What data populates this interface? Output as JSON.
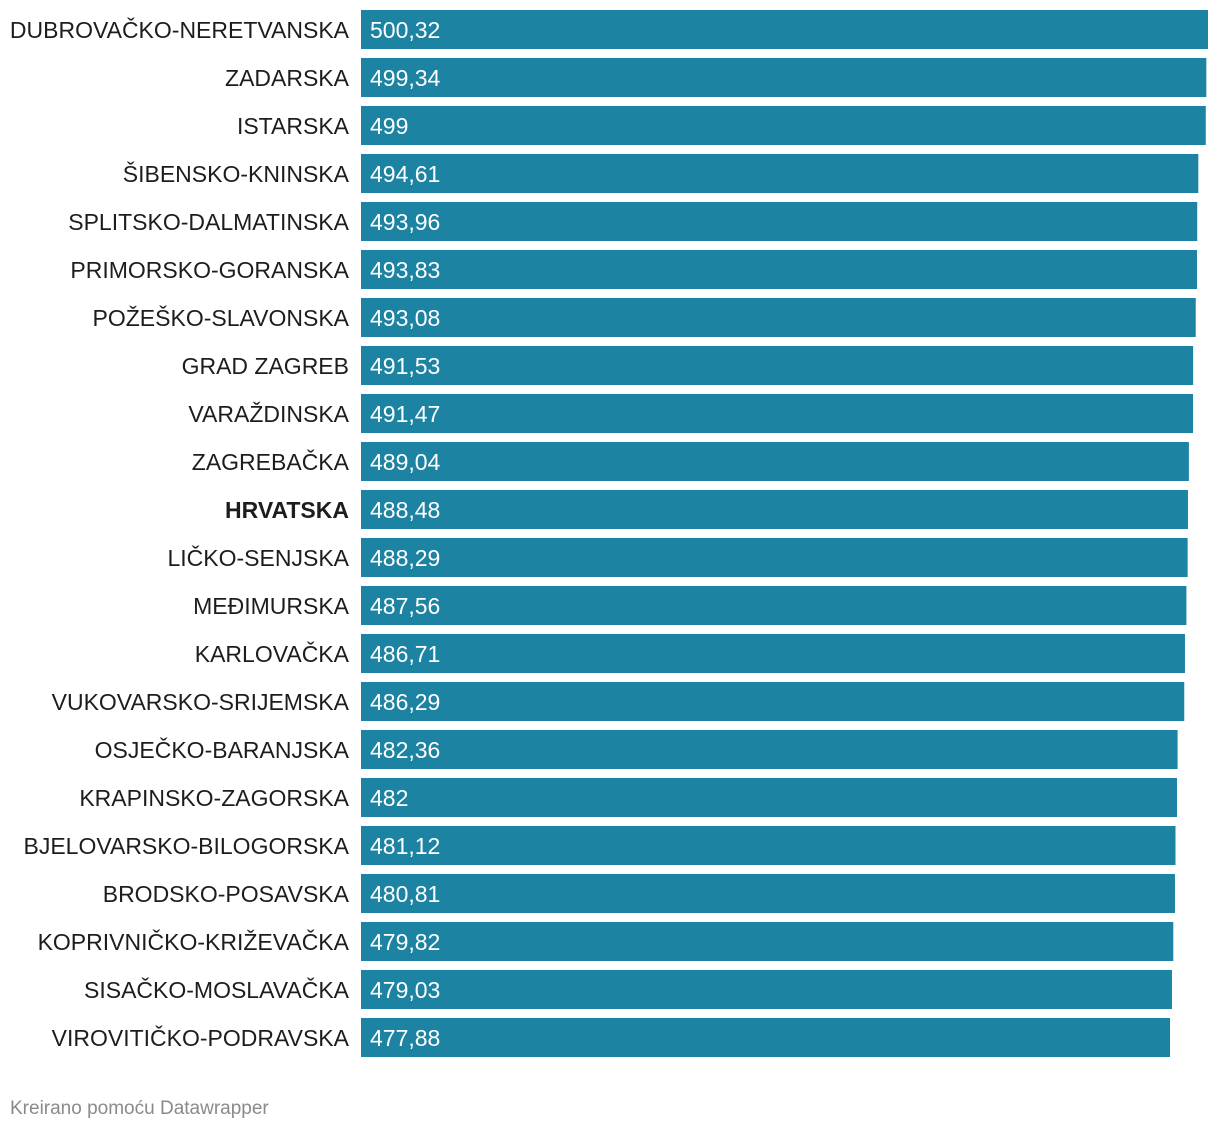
{
  "chart_data": {
    "type": "bar",
    "orientation": "horizontal",
    "categories": [
      "DUBROVAČKO-NERETVANSKA",
      "ZADARSKA",
      "ISTARSKA",
      "ŠIBENSKO-KNINSKA",
      "SPLITSKO-DALMATINSKA",
      "PRIMORSKO-GORANSKA",
      "POŽEŠKO-SLAVONSKA",
      "GRAD ZAGREB",
      "VARAŽDINSKA",
      "ZAGREBAČKA",
      "HRVATSKA",
      "LIČKO-SENJSKA",
      "MEĐIMURSKA",
      "KARLOVAČKA",
      "VUKOVARSKO-SRIJEMSKA",
      "OSJEČKO-BARANJSKA",
      "KRAPINSKO-ZAGORSKA",
      "BJELOVARSKO-BILOGORSKA",
      "BRODSKO-POSAVSKA",
      "KOPRIVNIČKO-KRIŽEVAČKA",
      "SISAČKO-MOSLAVAČKA",
      "VIROVITIČKO-PODRAVSKA"
    ],
    "values": [
      500.32,
      499.34,
      499,
      494.61,
      493.96,
      493.83,
      493.08,
      491.53,
      491.47,
      489.04,
      488.48,
      488.29,
      487.56,
      486.71,
      486.29,
      482.36,
      482,
      481.12,
      480.81,
      479.82,
      479.03,
      477.88
    ],
    "value_labels": [
      "500,32",
      "499,34",
      "499",
      "494,61",
      "493,96",
      "493,83",
      "493,08",
      "491,53",
      "491,47",
      "489,04",
      "488,48",
      "488,29",
      "487,56",
      "486,71",
      "486,29",
      "482,36",
      "482",
      "481,12",
      "480,81",
      "479,82",
      "479,03",
      "477,88"
    ],
    "highlighted_category": "HRVATSKA",
    "bar_color": "#1d83a3",
    "xlim": [
      0,
      500.32
    ],
    "grid": false,
    "legend": "none"
  },
  "footer": {
    "credit": "Kreirano pomoću Datawrapper"
  }
}
